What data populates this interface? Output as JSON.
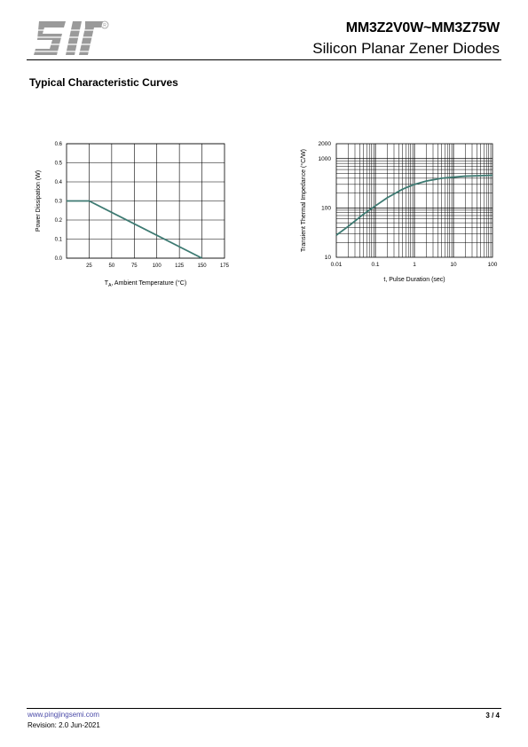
{
  "header": {
    "part_number": "MM3Z2V0W~MM3Z75W",
    "subtitle": "Silicon Planar Zener Diodes",
    "logo_mark": "registered-symbol"
  },
  "section_title": "Typical Characteristic Curves",
  "chart_data": [
    {
      "type": "line",
      "ylabel": "Power Dissipation (W)",
      "xlabel_main": "T",
      "xlabel_sub": "A",
      "xlabel_rest": ", Ambient Temperature (°C)",
      "x_ticks": [
        "25",
        "50",
        "75",
        "100",
        "125",
        "150",
        "175"
      ],
      "y_ticks": [
        "0.0",
        "0.1",
        "0.2",
        "0.3",
        "0.4",
        "0.5",
        "0.6"
      ],
      "xlim": [
        0,
        175
      ],
      "ylim": [
        0,
        0.6
      ],
      "grid": true,
      "line_color": "#3d7a72",
      "series": [
        {
          "x": [
            0,
            25,
            150
          ],
          "y": [
            0.3,
            0.3,
            0.0
          ]
        }
      ]
    },
    {
      "type": "line",
      "ylabel": "Transient Thermal Impedance (°C/W)",
      "xlabel": "t, Pulse Duration  (sec)",
      "x_scale": "log",
      "y_scale": "log",
      "x_ticks": [
        "0.01",
        "0.1",
        "1",
        "10",
        "100"
      ],
      "y_ticks": [
        "10",
        "100",
        "1000",
        "2000"
      ],
      "xlim": [
        0.01,
        100
      ],
      "ylim": [
        10,
        2000
      ],
      "grid": true,
      "line_color": "#3d7a72",
      "series": [
        {
          "x": [
            0.01,
            0.02,
            0.05,
            0.1,
            0.2,
            0.5,
            1,
            2,
            5,
            10,
            20,
            50,
            100
          ],
          "y": [
            28,
            42,
            75,
            110,
            160,
            240,
            300,
            350,
            400,
            420,
            440,
            450,
            460
          ]
        }
      ]
    }
  ],
  "footer": {
    "url": "www.pingjingsemi.com",
    "revision": "Revision:  2.0  Jun-2021",
    "page": "3 / 4"
  }
}
